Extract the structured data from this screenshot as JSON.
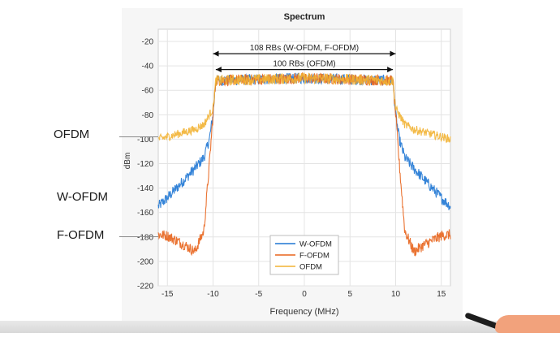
{
  "chart_data": {
    "type": "line",
    "title": "Spectrum",
    "xlabel": "Frequency (MHz)",
    "ylabel": "dBm",
    "xlim": [
      -16,
      16
    ],
    "ylim": [
      -220,
      -10
    ],
    "xticks": [
      -15,
      -10,
      -5,
      0,
      5,
      10,
      15
    ],
    "yticks": [
      -20,
      -40,
      -60,
      -80,
      -100,
      -120,
      -140,
      -160,
      -180,
      -200,
      -220
    ],
    "grid": true,
    "legend_placement": "bottom-center",
    "series": [
      {
        "name": "W-OFDM",
        "color": "#1f77d4",
        "x": [
          -16,
          -15,
          -14,
          -13,
          -12,
          -11,
          -10.4,
          -10,
          -9.7,
          0,
          9.7,
          10,
          10.4,
          11,
          12,
          13,
          14,
          15,
          16
        ],
        "y": [
          -155,
          -148,
          -140,
          -132,
          -124,
          -115,
          -100,
          -80,
          -52,
          -50,
          -52,
          -80,
          -100,
          -115,
          -124,
          -132,
          -140,
          -148,
          -155
        ]
      },
      {
        "name": "F-OFDM",
        "color": "#e8641c",
        "x": [
          -16,
          -15,
          -14,
          -13,
          -12,
          -11,
          -10.4,
          -10,
          -9.7,
          0,
          9.7,
          10,
          10.4,
          11,
          12,
          13,
          14,
          15,
          16
        ],
        "y": [
          -178,
          -179,
          -183,
          -187,
          -192,
          -175,
          -120,
          -80,
          -52,
          -50,
          -52,
          -80,
          -120,
          -175,
          -192,
          -187,
          -183,
          -179,
          -178
        ]
      },
      {
        "name": "OFDM",
        "color": "#f2b233",
        "x": [
          -16,
          -15,
          -14,
          -13,
          -12,
          -11,
          -10.4,
          -10,
          -9.7,
          0,
          9.7,
          10,
          10.4,
          11,
          12,
          13,
          14,
          15,
          16
        ],
        "y": [
          -100,
          -98,
          -96,
          -94,
          -92,
          -88,
          -80,
          -75,
          -52,
          -50,
          -52,
          -75,
          -80,
          -88,
          -92,
          -94,
          -96,
          -98,
          -100
        ]
      }
    ],
    "annotations": [
      {
        "text": "108 RBs (W-OFDM, F-OFDM)",
        "x_start": -10,
        "x_end": 10
      },
      {
        "text": "100 RBs (OFDM)",
        "x_start": -9.7,
        "x_end": 9.7
      }
    ]
  },
  "side_labels": {
    "ofdm": "OFDM",
    "wofdm": "W-OFDM",
    "fofdm": "F-OFDM"
  }
}
